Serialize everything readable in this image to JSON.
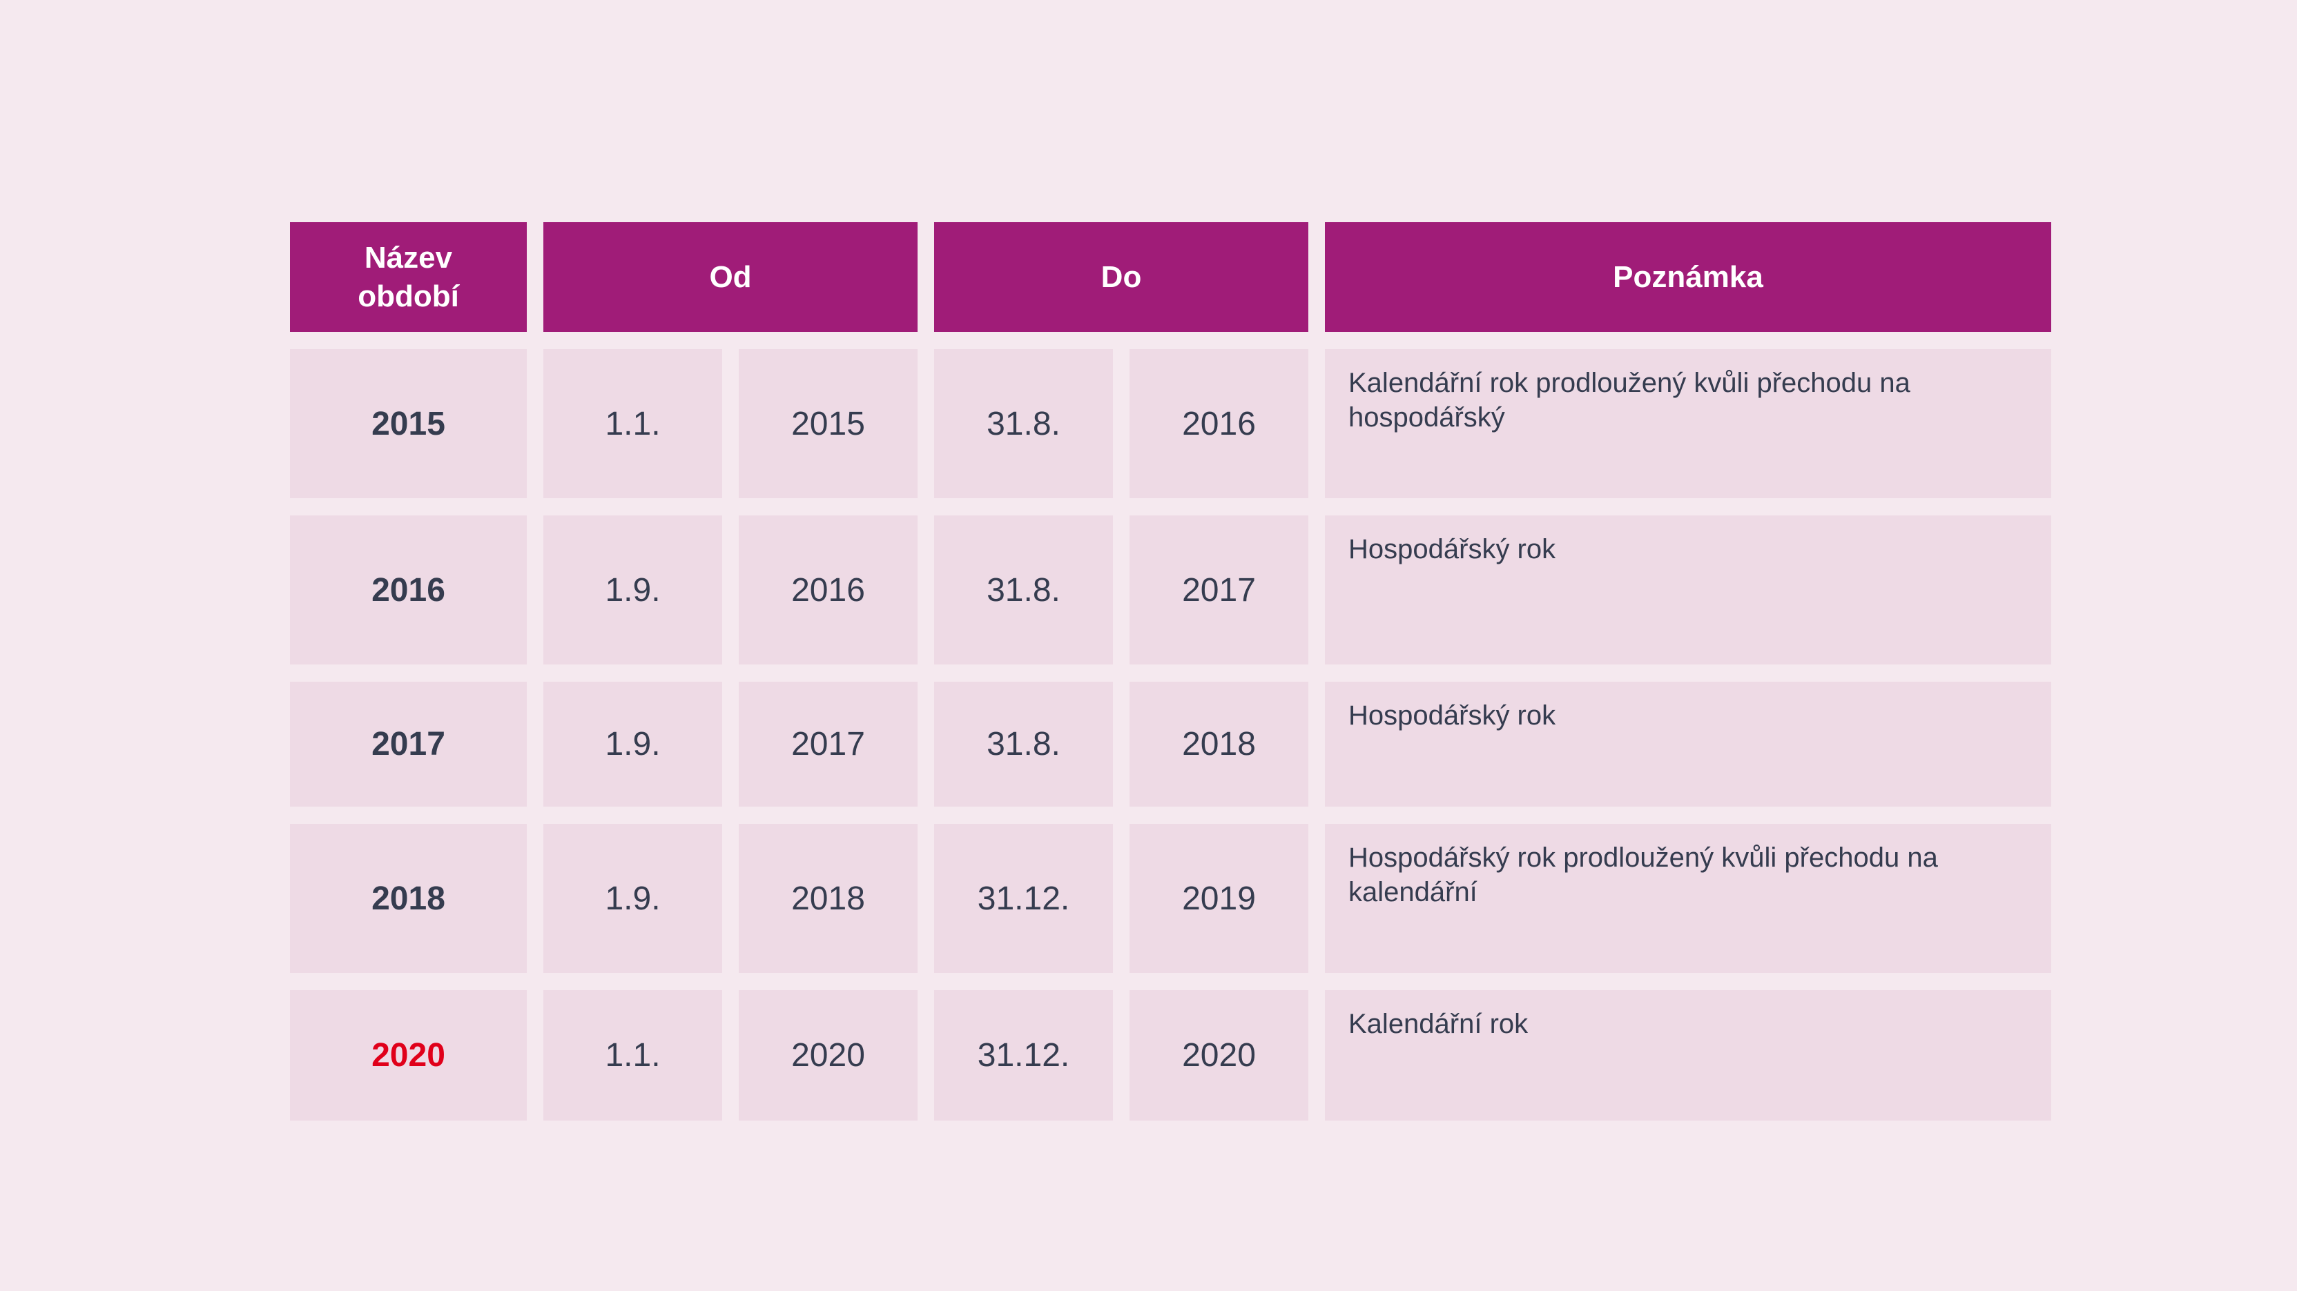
{
  "table": {
    "headers": {
      "name": "Název\nobdobí",
      "from": "Od",
      "to": "Do",
      "note": "Poznámka"
    },
    "rows": [
      {
        "name": "2015",
        "from_day": "1.1.",
        "from_year": "2015",
        "to_day": "31.8.",
        "to_year": "2016",
        "note": "Kalendářní rok prodloužený kvůli přechodu na hospodářský"
      },
      {
        "name": "2016",
        "from_day": "1.9.",
        "from_year": "2016",
        "to_day": "31.8.",
        "to_year": "2017",
        "note": "Hospodářský rok"
      },
      {
        "name": "2017",
        "from_day": "1.9.",
        "from_year": "2017",
        "to_day": "31.8.",
        "to_year": "2018",
        "note": "Hospodářský rok"
      },
      {
        "name": "2018",
        "from_day": "1.9.",
        "from_year": "2018",
        "to_day": "31.12.",
        "to_year": "2019",
        "note": "Hospodářský rok prodloužený kvůli přechodu na kalendářní"
      },
      {
        "name": "2020",
        "from_day": "1.1.",
        "from_year": "2020",
        "to_day": "31.12.",
        "to_year": "2020",
        "note": "Kalendářní rok",
        "highlight": true
      }
    ]
  },
  "colors": {
    "background": "#f5e9ef",
    "header": "#a01c78",
    "cell": "#eedae5",
    "text": "#353c4f",
    "highlight": "#e0001a"
  }
}
